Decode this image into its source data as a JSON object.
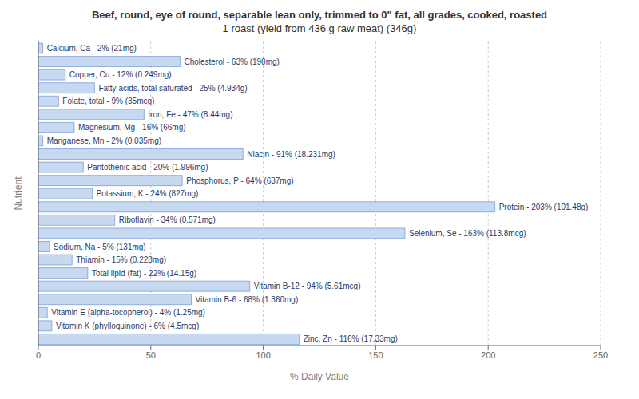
{
  "chart_data": {
    "type": "bar",
    "orientation": "horizontal",
    "title": "Beef, round, eye of round, separable lean only, trimmed to 0\" fat, all grades, cooked, roasted",
    "subtitle": "1 roast (yield from 436 g raw meat) (346g)",
    "x_label": "% Daily Value",
    "y_label": "Nutrient",
    "categories": [
      "Calcium, Ca - 2% (21mg)",
      "Cholesterol - 63% (190mg)",
      "Copper, Cu - 12% (0.249mg)",
      "Fatty acids, total saturated - 25% (4.934g)",
      "Folate, total - 9% (35mcg)",
      "Iron, Fe - 47% (8.44mg)",
      "Magnesium, Mg - 16% (66mg)",
      "Manganese, Mn - 2% (0.035mg)",
      "Niacin - 91% (18.231mg)",
      "Pantothenic acid - 20% (1.996mg)",
      "Phosphorus, P - 64% (637mg)",
      "Potassium, K - 24% (827mg)",
      "Protein - 203% (101.48g)",
      "Riboflavin - 34% (0.571mg)",
      "Selenium, Se - 163% (113.8mcg)",
      "Sodium, Na - 5% (131mg)",
      "Thiamin - 15% (0.228mg)",
      "Total lipid (fat) - 22% (14.15g)",
      "Vitamin B-12 - 94% (5.61mcg)",
      "Vitamin B-6 - 68% (1.360mg)",
      "Vitamin E (alpha-tocopherol) - 4% (1.25mg)",
      "Vitamin K (phylloquinone) - 6% (4.5mcg)",
      "Zinc, Zn - 116% (17.33mg)"
    ],
    "values": [
      2,
      63,
      12,
      25,
      9,
      47,
      16,
      2,
      91,
      20,
      64,
      24,
      203,
      34,
      163,
      5,
      15,
      22,
      94,
      68,
      4,
      6,
      116
    ],
    "color": "#c6d9f1",
    "xlim": [
      0,
      250
    ],
    "xticks": [
      0,
      50,
      100,
      150,
      200,
      250
    ],
    "grid": true,
    "tick_labels": "x"
  }
}
